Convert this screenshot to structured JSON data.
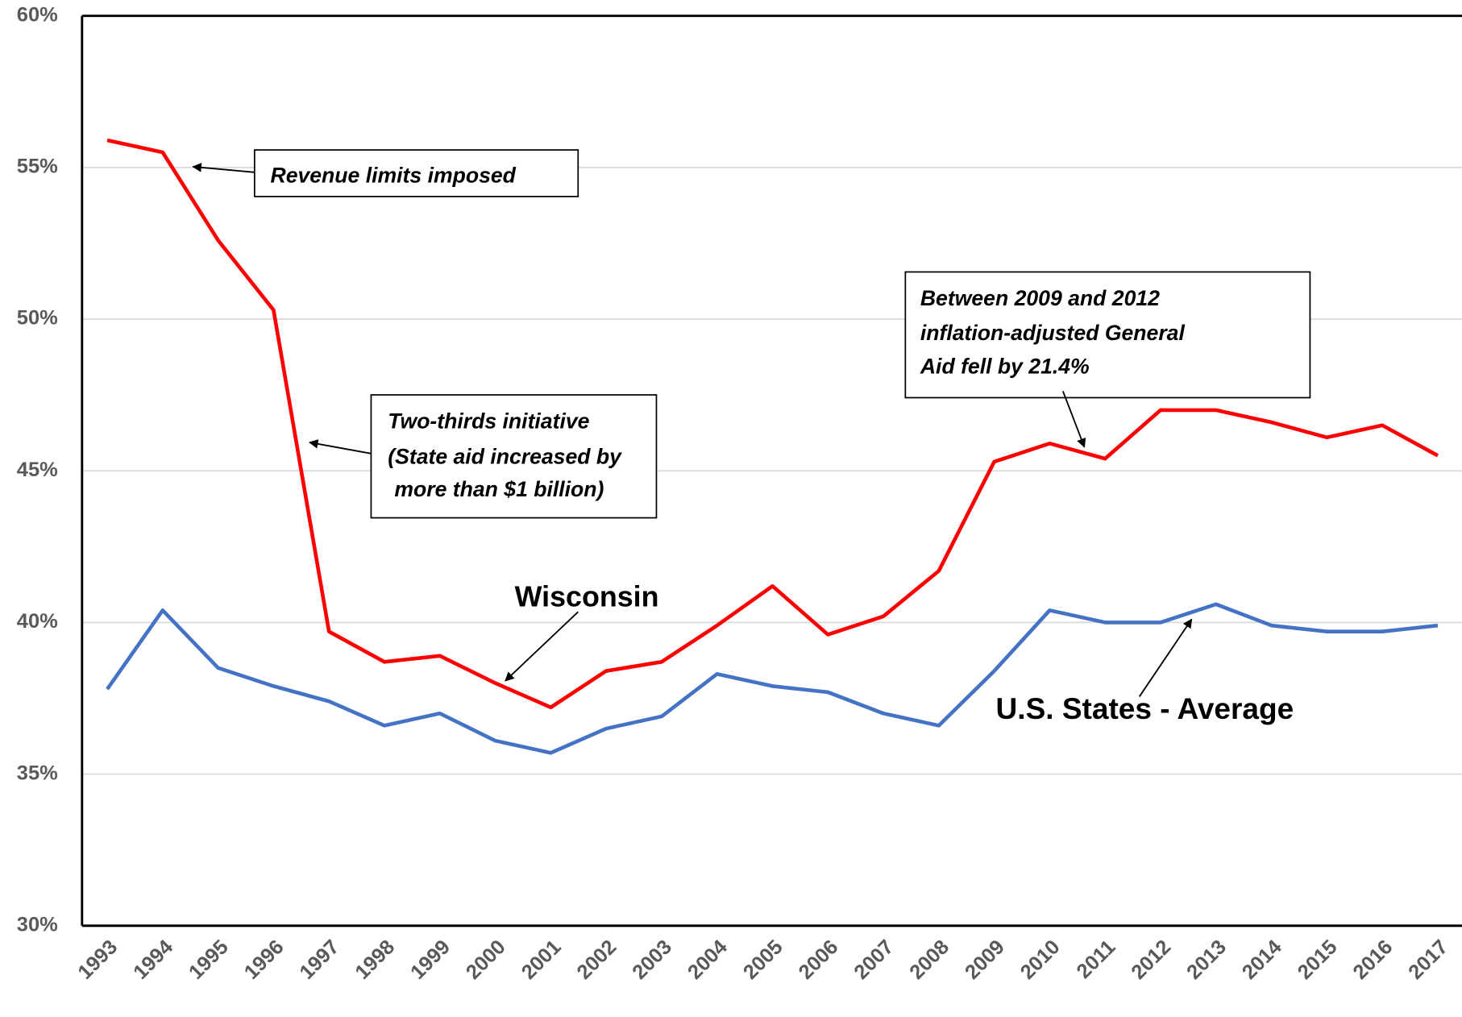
{
  "chart_data": {
    "type": "line",
    "categories": [
      "1993",
      "1994",
      "1995",
      "1996",
      "1997",
      "1998",
      "1999",
      "2000",
      "2001",
      "2002",
      "2003",
      "2004",
      "2005",
      "2006",
      "2007",
      "2008",
      "2009",
      "2010",
      "2011",
      "2012",
      "2013",
      "2014",
      "2015",
      "2016",
      "2017"
    ],
    "series": [
      {
        "name": "Wisconsin",
        "color": "#ff0000",
        "values": [
          55.9,
          55.5,
          52.6,
          50.3,
          39.7,
          38.7,
          38.9,
          38.0,
          37.2,
          38.4,
          38.7,
          39.9,
          41.2,
          39.6,
          40.2,
          41.7,
          45.3,
          45.9,
          45.4,
          47.0,
          47.0,
          46.6,
          46.1,
          46.5,
          45.5
        ]
      },
      {
        "name": "U.S. States - Average",
        "color": "#4472c4",
        "values": [
          37.8,
          40.4,
          38.5,
          37.9,
          37.4,
          36.6,
          37.0,
          36.1,
          35.7,
          36.5,
          36.9,
          38.3,
          37.9,
          37.7,
          37.0,
          36.6,
          38.4,
          40.4,
          40.0,
          40.0,
          40.6,
          39.9,
          39.7,
          39.7,
          39.9
        ]
      }
    ],
    "ylim": [
      30,
      60
    ],
    "yticks": [
      {
        "value": 30,
        "label": "30%"
      },
      {
        "value": 35,
        "label": "35%"
      },
      {
        "value": 40,
        "label": "40%"
      },
      {
        "value": 45,
        "label": "45%"
      },
      {
        "value": 50,
        "label": "50%"
      },
      {
        "value": 55,
        "label": "55%"
      },
      {
        "value": 60,
        "label": "60%"
      }
    ],
    "grid": true,
    "annotations": [
      {
        "lines": [
          "Revenue limits imposed"
        ]
      },
      {
        "lines": [
          "Two-thirds initiative",
          "(State aid increased by",
          "more than $1 billion)"
        ]
      },
      {
        "lines": [
          "Between 2009 and 2012",
          "inflation-adjusted  General",
          "Aid fell by 21.4%"
        ]
      }
    ]
  }
}
